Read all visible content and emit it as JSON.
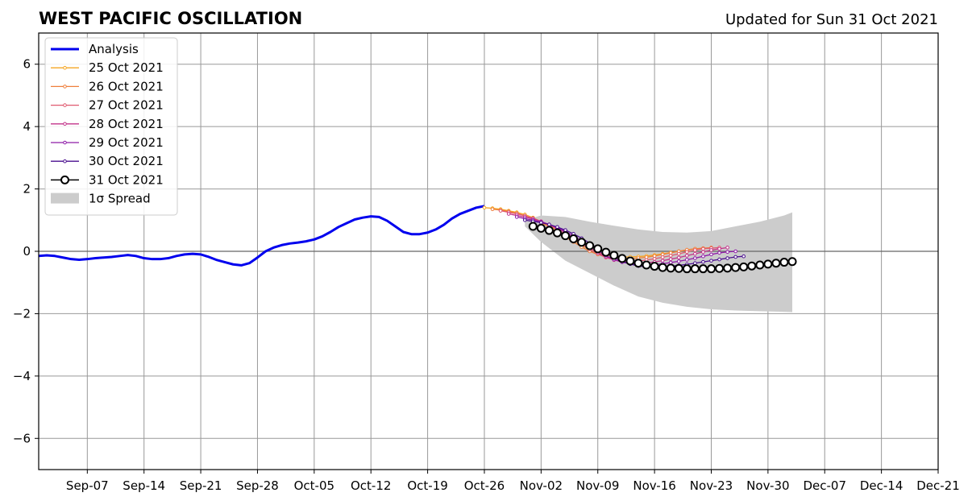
{
  "chart_data": {
    "type": "line",
    "title": "WEST PACIFIC OSCILLATION",
    "subtitle": "Updated for Sun 31 Oct 2021",
    "xlabel": "",
    "ylabel": "",
    "x_ticks": [
      "Sep-07",
      "Sep-14",
      "Sep-21",
      "Sep-28",
      "Oct-05",
      "Oct-12",
      "Oct-19",
      "Oct-26",
      "Nov-02",
      "Nov-09",
      "Nov-16",
      "Nov-23",
      "Nov-30",
      "Dec-07",
      "Dec-14",
      "Dec-21"
    ],
    "y_ticks": [
      -6,
      -4,
      -2,
      0,
      2,
      4,
      6
    ],
    "y_tick_labels": [
      "−6",
      "−4",
      "−2",
      "0",
      "2",
      "4",
      "6"
    ],
    "x_range": [
      "2021-09-01",
      "2021-12-21"
    ],
    "ylim": [
      -7,
      7
    ],
    "grid": true,
    "legend_position": "upper-left",
    "analysis": {
      "name": "Analysis",
      "color": "#0000ee",
      "x": [
        "2021-09-01",
        "2021-09-02",
        "2021-09-03",
        "2021-09-04",
        "2021-09-05",
        "2021-09-06",
        "2021-09-07",
        "2021-09-08",
        "2021-09-09",
        "2021-09-10",
        "2021-09-11",
        "2021-09-12",
        "2021-09-13",
        "2021-09-14",
        "2021-09-15",
        "2021-09-16",
        "2021-09-17",
        "2021-09-18",
        "2021-09-19",
        "2021-09-20",
        "2021-09-21",
        "2021-09-22",
        "2021-09-23",
        "2021-09-24",
        "2021-09-25",
        "2021-09-26",
        "2021-09-27",
        "2021-09-28",
        "2021-09-29",
        "2021-09-30",
        "2021-10-01",
        "2021-10-02",
        "2021-10-03",
        "2021-10-04",
        "2021-10-05",
        "2021-10-06",
        "2021-10-07",
        "2021-10-08",
        "2021-10-09",
        "2021-10-10",
        "2021-10-11",
        "2021-10-12",
        "2021-10-13",
        "2021-10-14",
        "2021-10-15",
        "2021-10-16",
        "2021-10-17",
        "2021-10-18",
        "2021-10-19",
        "2021-10-20",
        "2021-10-21",
        "2021-10-22",
        "2021-10-23",
        "2021-10-24",
        "2021-10-25",
        "2021-10-26"
      ],
      "y": [
        -0.15,
        -0.13,
        -0.15,
        -0.2,
        -0.25,
        -0.27,
        -0.25,
        -0.22,
        -0.2,
        -0.18,
        -0.15,
        -0.12,
        -0.15,
        -0.22,
        -0.25,
        -0.25,
        -0.22,
        -0.15,
        -0.1,
        -0.08,
        -0.1,
        -0.18,
        -0.28,
        -0.35,
        -0.42,
        -0.45,
        -0.38,
        -0.2,
        0.0,
        0.12,
        0.2,
        0.25,
        0.28,
        0.32,
        0.38,
        0.48,
        0.62,
        0.78,
        0.9,
        1.02,
        1.08,
        1.12,
        1.1,
        0.98,
        0.8,
        0.62,
        0.55,
        0.55,
        0.6,
        0.7,
        0.85,
        1.05,
        1.2,
        1.3,
        1.4,
        1.45
      ]
    },
    "forecasts": [
      {
        "name": "25 Oct 2021",
        "color": "#f5a623",
        "start": "2021-10-26",
        "y": [
          1.4,
          1.38,
          1.35,
          1.3,
          1.25,
          1.18,
          1.08,
          0.95,
          0.82,
          0.68,
          0.52,
          0.36,
          0.2,
          0.05,
          -0.05,
          -0.12,
          -0.16,
          -0.18,
          -0.18,
          -0.17,
          -0.15,
          -0.12,
          -0.08,
          -0.04,
          0.0,
          0.04,
          0.08,
          0.1
        ]
      },
      {
        "name": "26 Oct 2021",
        "color": "#ef7f3c",
        "start": "2021-10-27",
        "y": [
          1.35,
          1.32,
          1.28,
          1.22,
          1.14,
          1.04,
          0.92,
          0.78,
          0.62,
          0.46,
          0.3,
          0.14,
          0.0,
          -0.1,
          -0.18,
          -0.22,
          -0.24,
          -0.24,
          -0.22,
          -0.19,
          -0.15,
          -0.1,
          -0.05,
          0.0,
          0.05,
          0.08,
          0.1,
          0.12
        ]
      },
      {
        "name": "27 Oct 2021",
        "color": "#e05a70",
        "start": "2021-10-28",
        "y": [
          1.3,
          1.25,
          1.2,
          1.14,
          1.06,
          0.96,
          0.84,
          0.7,
          0.54,
          0.38,
          0.22,
          0.06,
          -0.08,
          -0.2,
          -0.27,
          -0.31,
          -0.32,
          -0.31,
          -0.28,
          -0.24,
          -0.19,
          -0.14,
          -0.08,
          -0.02,
          0.04,
          0.08,
          0.1,
          0.12
        ]
      },
      {
        "name": "28 Oct 2021",
        "color": "#c2338a",
        "start": "2021-10-29",
        "y": [
          1.2,
          1.15,
          1.1,
          1.04,
          0.96,
          0.86,
          0.74,
          0.6,
          0.44,
          0.28,
          0.12,
          -0.04,
          -0.18,
          -0.28,
          -0.34,
          -0.37,
          -0.38,
          -0.37,
          -0.34,
          -0.3,
          -0.25,
          -0.2,
          -0.14,
          -0.08,
          -0.02,
          0.04,
          0.08,
          0.12
        ]
      },
      {
        "name": "29 Oct 2021",
        "color": "#8e1aa8",
        "start": "2021-10-30",
        "y": [
          1.1,
          1.05,
          1.0,
          0.94,
          0.86,
          0.76,
          0.64,
          0.5,
          0.34,
          0.18,
          0.02,
          -0.14,
          -0.26,
          -0.35,
          -0.4,
          -0.43,
          -0.44,
          -0.43,
          -0.4,
          -0.36,
          -0.32,
          -0.27,
          -0.22,
          -0.16,
          -0.1,
          -0.05,
          -0.02,
          0.0
        ]
      },
      {
        "name": "30 Oct 2021",
        "color": "#4a0e8f",
        "start": "2021-10-31",
        "y": [
          1.0,
          0.96,
          0.92,
          0.86,
          0.78,
          0.68,
          0.56,
          0.42,
          0.26,
          0.1,
          -0.06,
          -0.2,
          -0.32,
          -0.41,
          -0.47,
          -0.5,
          -0.51,
          -0.5,
          -0.48,
          -0.45,
          -0.42,
          -0.38,
          -0.34,
          -0.3,
          -0.26,
          -0.22,
          -0.18,
          -0.16
        ]
      },
      {
        "name": "31 Oct 2021",
        "color": "#000000",
        "marker": "open-circle",
        "start": "2021-11-01",
        "y": [
          0.8,
          0.74,
          0.67,
          0.59,
          0.5,
          0.4,
          0.29,
          0.18,
          0.08,
          -0.03,
          -0.13,
          -0.23,
          -0.31,
          -0.38,
          -0.44,
          -0.48,
          -0.52,
          -0.54,
          -0.55,
          -0.56,
          -0.56,
          -0.56,
          -0.56,
          -0.55,
          -0.54,
          -0.52,
          -0.5,
          -0.47,
          -0.44,
          -0.41,
          -0.38,
          -0.35,
          -0.33
        ]
      }
    ],
    "spread": {
      "name": "1σ Spread",
      "color": "#cccccc",
      "x": [
        "2021-10-31",
        "2021-11-02",
        "2021-11-05",
        "2021-11-08",
        "2021-11-11",
        "2021-11-14",
        "2021-11-17",
        "2021-11-20",
        "2021-11-23",
        "2021-11-26",
        "2021-11-29",
        "2021-12-02",
        "2021-12-03"
      ],
      "upper": [
        1.0,
        1.15,
        1.1,
        0.95,
        0.82,
        0.7,
        0.62,
        0.6,
        0.65,
        0.8,
        0.95,
        1.15,
        1.25
      ],
      "lower": [
        0.8,
        0.3,
        -0.3,
        -0.7,
        -1.1,
        -1.45,
        -1.65,
        -1.78,
        -1.86,
        -1.9,
        -1.92,
        -1.94,
        -1.95
      ]
    }
  }
}
